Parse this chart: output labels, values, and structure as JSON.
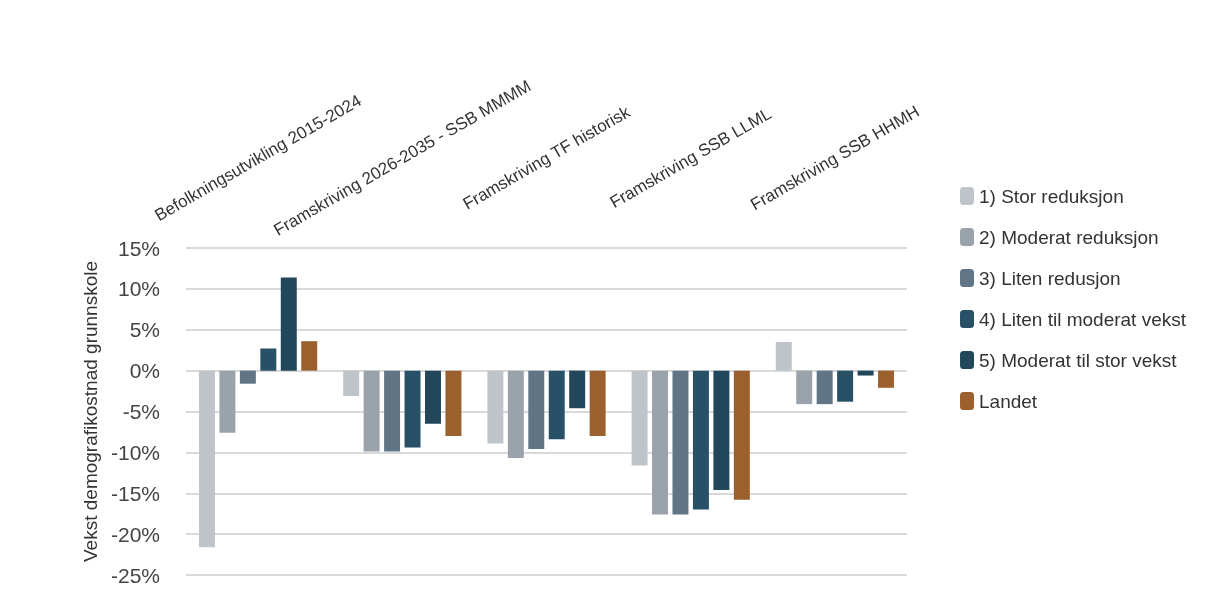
{
  "chart_data": {
    "type": "bar",
    "ylabel": "Vekst demografikostnad grunnskole",
    "categories": [
      "Befolkningsutvikling 2015-2024",
      "Framskriving 2026-2035 - SSB MMMM",
      "Framskriving TF historisk",
      "Framskriving SSB LLML",
      "Framskriving SSB HHMH"
    ],
    "series": [
      {
        "name": "1) Stor reduksjon",
        "color": "#bfc4ca",
        "values": [
          -21.6,
          -3.1,
          -8.9,
          -11.6,
          3.5
        ]
      },
      {
        "name": "2) Moderat reduksjon",
        "color": "#9aa3ab",
        "values": [
          -7.6,
          -9.9,
          -10.7,
          -17.6,
          -4.1
        ]
      },
      {
        "name": "3) Liten redusjon",
        "color": "#607686",
        "values": [
          -1.6,
          -9.9,
          -9.6,
          -17.6,
          -4.1
        ]
      },
      {
        "name": "4) Liten til moderat vekst",
        "color": "#285167",
        "values": [
          2.7,
          -9.4,
          -8.4,
          -17.0,
          -3.8
        ]
      },
      {
        "name": "5) Moderat til stor vekst",
        "color": "#22475a",
        "values": [
          11.4,
          -6.5,
          -4.6,
          -14.6,
          -0.6
        ]
      },
      {
        "name": "Landet",
        "color": "#9b602e",
        "values": [
          3.6,
          -8.0,
          -8.0,
          -15.8,
          -2.1
        ]
      }
    ],
    "ylim": [
      -25,
      15
    ],
    "yticks": [
      {
        "value": -25,
        "label": "-25%"
      },
      {
        "value": -20,
        "label": "-20%"
      },
      {
        "value": -15,
        "label": "-15%"
      },
      {
        "value": -10,
        "label": "-10%"
      },
      {
        "value": -5,
        "label": "-5%"
      },
      {
        "value": 0,
        "label": "0%"
      },
      {
        "value": 5,
        "label": "5%"
      },
      {
        "value": 10,
        "label": "10%"
      },
      {
        "value": 15,
        "label": "15%"
      }
    ],
    "grid": "y",
    "legend": "right"
  }
}
